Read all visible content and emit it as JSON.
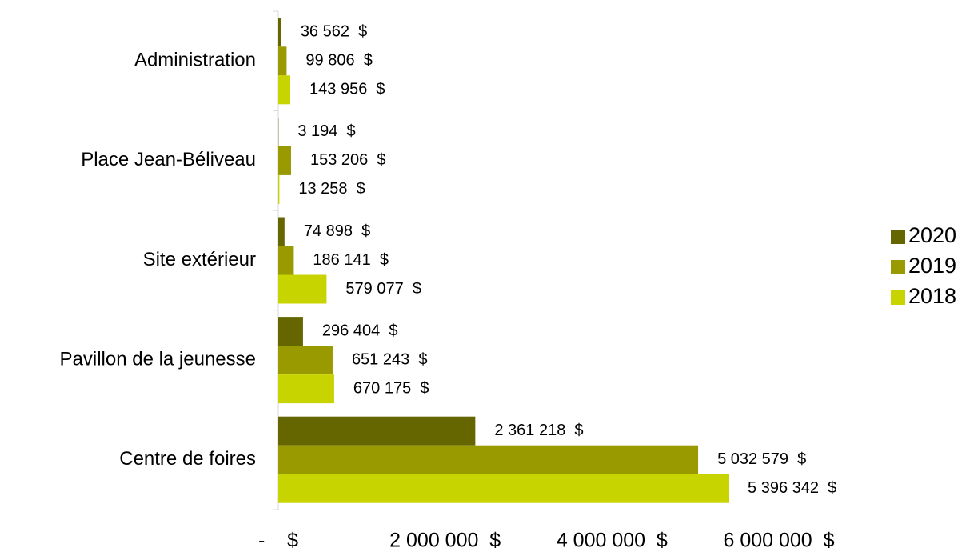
{
  "chart_data": {
    "type": "hbar",
    "categories": [
      "Administration",
      "Place Jean-Béliveau",
      "Site extérieur",
      "Pavillon de la jeunesse",
      "Centre de foires"
    ],
    "series": [
      {
        "name": "2020",
        "color": "#666600",
        "values": [
          36562,
          3194,
          74898,
          296404,
          2361218
        ],
        "value_labels": [
          "36 562  $",
          "3 194  $",
          "74 898  $",
          "296 404  $",
          "2 361 218  $"
        ]
      },
      {
        "name": "2019",
        "color": "#999900",
        "values": [
          99806,
          153206,
          186141,
          651243,
          5032579
        ],
        "value_labels": [
          "99 806  $",
          "153 206  $",
          "186 141  $",
          "651 243  $",
          "5 032 579  $"
        ]
      },
      {
        "name": "2018",
        "color": "#c8d400",
        "values": [
          143956,
          13258,
          579077,
          670175,
          5396342
        ],
        "value_labels": [
          "143 956  $",
          "13 258  $",
          "579 077  $",
          "670 175  $",
          "5 396 342  $"
        ]
      }
    ],
    "xlim": [
      0,
      6000000
    ],
    "xticks": [
      {
        "value": 0,
        "label": "-    $"
      },
      {
        "value": 2000000,
        "label": "2 000 000  $"
      },
      {
        "value": 4000000,
        "label": "4 000 000  $"
      },
      {
        "value": 6000000,
        "label": "6 000 000  $"
      }
    ],
    "legend": "right"
  }
}
